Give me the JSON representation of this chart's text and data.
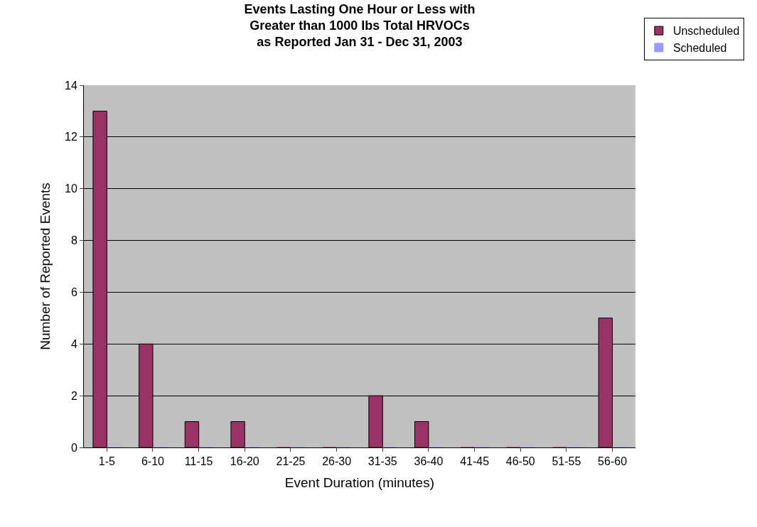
{
  "chart_data": {
    "type": "bar",
    "title": "Events Lasting One Hour or Less with\nGreater than 1000 lbs Total HRVOCs\nas Reported Jan 31 - Dec 31, 2003",
    "xlabel": "Event Duration (minutes)",
    "ylabel": "Number of Reported Events",
    "categories": [
      "1-5",
      "6-10",
      "11-15",
      "16-20",
      "21-25",
      "26-30",
      "31-35",
      "36-40",
      "41-45",
      "46-50",
      "51-55",
      "56-60"
    ],
    "series": [
      {
        "name": "Unscheduled",
        "color": "#993366",
        "values": [
          13,
          4,
          1,
          1,
          0,
          0,
          2,
          1,
          0,
          0,
          0,
          5
        ]
      },
      {
        "name": "Scheduled",
        "color": "#9999ff",
        "values": [
          0,
          0,
          0,
          0,
          0,
          0,
          0,
          0,
          0,
          0,
          0,
          0
        ]
      }
    ],
    "ylim": [
      0,
      14
    ],
    "yticks": [
      0,
      2,
      4,
      6,
      8,
      10,
      12,
      14
    ],
    "grid": "y",
    "legend": "top right"
  }
}
